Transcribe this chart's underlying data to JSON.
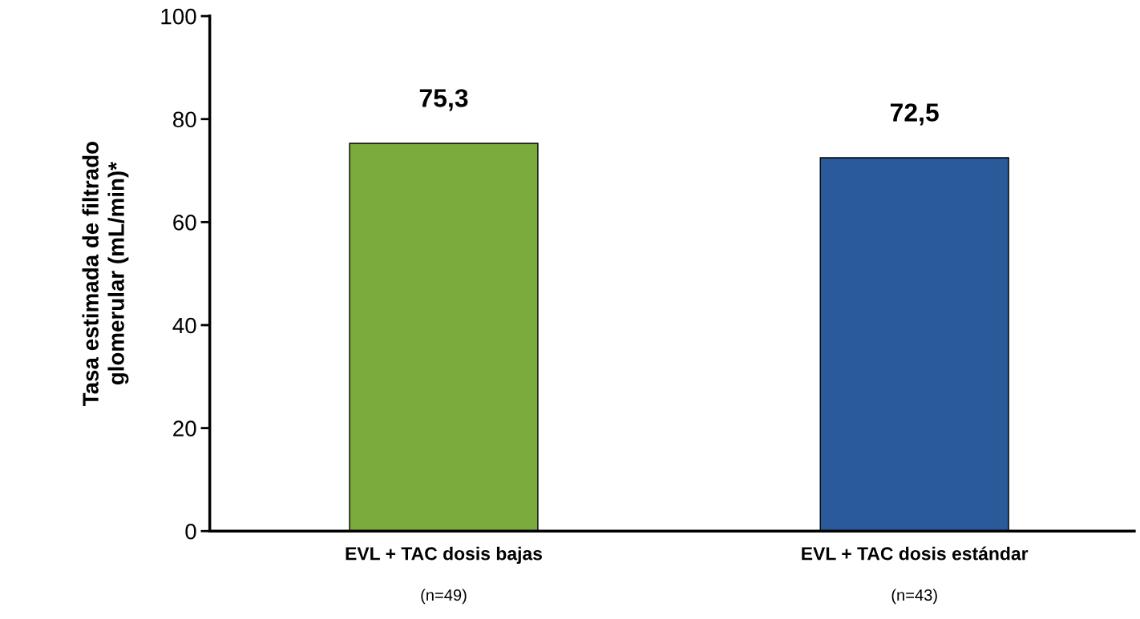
{
  "chart_data": {
    "type": "bar",
    "ylabel": "Tasa estimada de filtrado\nglomerular (mL/min)*",
    "categories": [
      "EVL + TAC dosis bajas\n(n=49)",
      "EVL + TAC dosis estándar\n(n=43)"
    ],
    "values": [
      75.3,
      72.5
    ],
    "colors": [
      "#7aab3c",
      "#2a5a99"
    ],
    "value_labels": [
      "75,3",
      "72,5"
    ],
    "ylim": [
      0,
      100
    ],
    "yticks": [
      0,
      20,
      40,
      60,
      80,
      100
    ],
    "grid": false,
    "legend": false
  }
}
